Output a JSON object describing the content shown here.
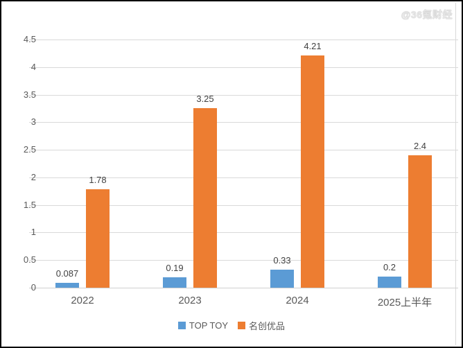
{
  "watermark": "@36氪财经",
  "colors": {
    "series_blue": "#5B9BD5",
    "series_orange": "#ED7D31",
    "gridline": "#D9D9D9",
    "axis_text": "#595959",
    "value_label_text": "#404040",
    "border": "#000000"
  },
  "chart_data": {
    "type": "bar",
    "title": "",
    "xlabel": "",
    "ylabel": "",
    "categories": [
      "2022",
      "2023",
      "2024",
      "2025上半年"
    ],
    "series": [
      {
        "name": "TOP TOY",
        "color": "#5B9BD5",
        "values": [
          0.087,
          0.19,
          0.33,
          0.2
        ],
        "labels": [
          "0.087",
          "0.19",
          "0.33",
          "0.2"
        ]
      },
      {
        "name": "名创优品",
        "color": "#ED7D31",
        "values": [
          1.78,
          3.25,
          4.21,
          2.4
        ],
        "labels": [
          "1.78",
          "3.25",
          "4.21",
          "2.4"
        ]
      }
    ],
    "ylim": [
      0,
      4.5
    ],
    "ytick_step": 0.5,
    "yticks": [
      "0",
      "0.5",
      "1",
      "1.5",
      "2",
      "2.5",
      "3",
      "3.5",
      "4",
      "4.5"
    ],
    "grid": true,
    "legend_position": "bottom"
  }
}
